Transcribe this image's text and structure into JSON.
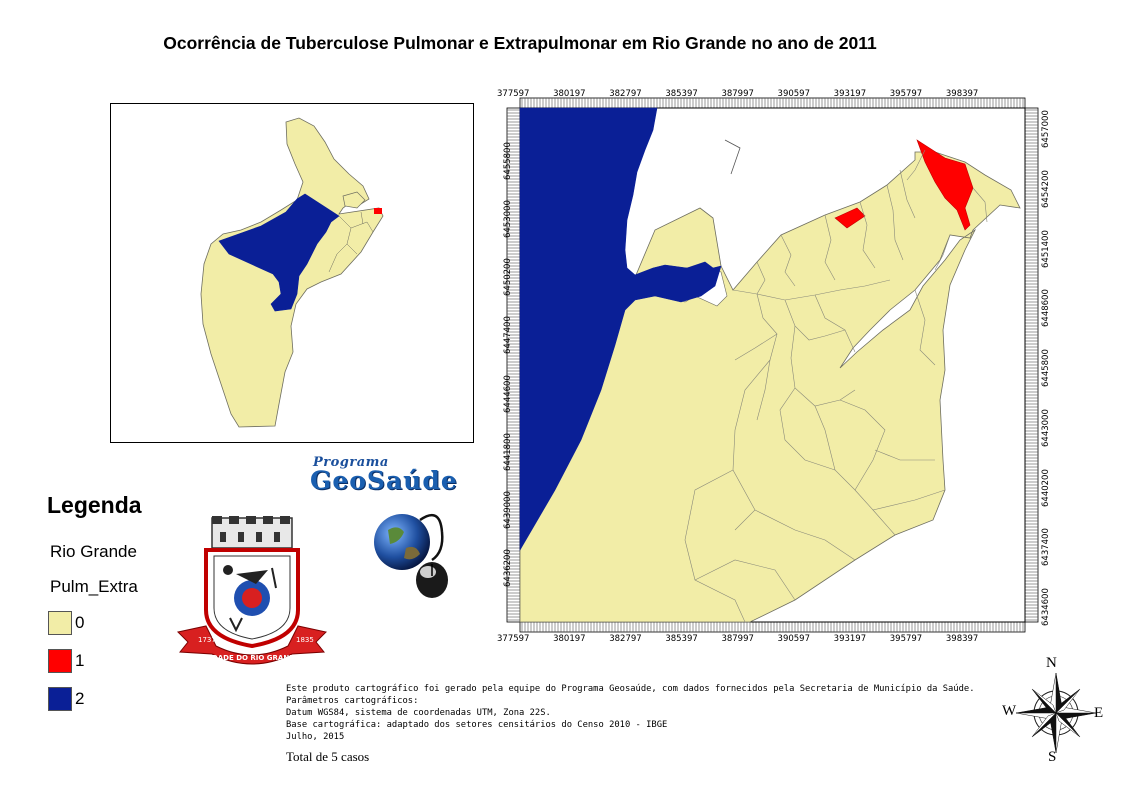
{
  "title": "Ocorrência de Tuberculose Pulmonar e Extrapulmonar em Rio Grande no ano de 2011",
  "colors": {
    "class0": "#f2eda7",
    "class1": "#ff0000",
    "class2": "#0a1f96",
    "outline": "#8a8a7a"
  },
  "main_map": {
    "x_ticks": [
      "377597",
      "380197",
      "382797",
      "385397",
      "387997",
      "390597",
      "393197",
      "395797",
      "398397"
    ],
    "y_ticks_left": [
      "6455800",
      "6453000",
      "6450200",
      "6447400",
      "6444600",
      "6441800",
      "6439000",
      "6436200"
    ],
    "y_ticks_right": [
      "6457000",
      "6454200",
      "6451400",
      "6448600",
      "6445800",
      "6443000",
      "6440200",
      "6437400",
      "6434600"
    ]
  },
  "legend": {
    "title": "Legenda",
    "layer_name": "Rio Grande",
    "field_name": "Pulm_Extra",
    "classes": [
      {
        "label": "0",
        "color": "#f2eda7"
      },
      {
        "label": "1",
        "color": "#ff0000"
      },
      {
        "label": "2",
        "color": "#0a1f96"
      }
    ]
  },
  "logos": {
    "program_line1": "Programa",
    "program_line2": "GeoSaúde",
    "coat_of_arms_motto": "CIDADE DO RIO GRANDE",
    "coat_of_arms_year_left": "1737",
    "coat_of_arms_year_right": "1835"
  },
  "notes": [
    "Este produto cartográfico foi gerado pela equipe do Programa Geosaúde, com dados fornecidos pela Secretaria de Município da Saúde.",
    "Parâmetros cartográficos:",
    "Datum WGS84, sistema de coordenadas UTM, Zona 22S.",
    "Base cartográfica: adaptado dos setores censitários do Censo 2010 - IBGE",
    "Julho, 2015"
  ],
  "total_cases": "Total de 5 casos",
  "compass": {
    "north": "N",
    "south": "S",
    "east": "E",
    "west": "W"
  }
}
